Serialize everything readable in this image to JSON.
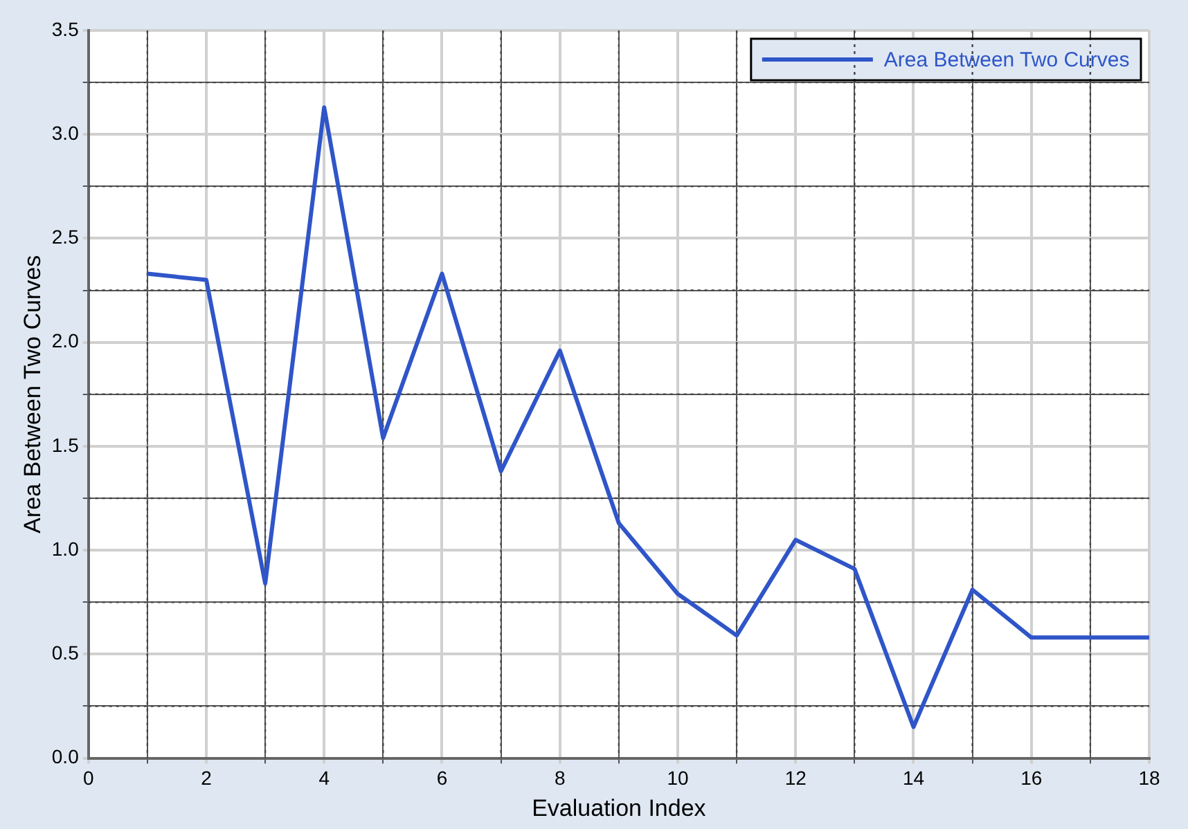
{
  "chart_data": {
    "type": "line",
    "xlabel": "Evaluation Index",
    "ylabel": "Area Between Two Curves",
    "x": [
      1,
      2,
      3,
      4,
      5,
      6,
      7,
      8,
      9,
      10,
      11,
      12,
      13,
      14,
      15,
      16,
      17,
      18
    ],
    "series": [
      {
        "name": "Area Between Two Curves",
        "color": "#2f55c8",
        "values": [
          2.33,
          2.3,
          0.84,
          3.13,
          1.54,
          2.33,
          1.38,
          1.96,
          1.13,
          0.79,
          0.59,
          1.05,
          0.91,
          0.15,
          0.81,
          0.58,
          0.58,
          0.58
        ]
      }
    ],
    "xlim": [
      0,
      18
    ],
    "xticks": [
      0,
      {
        "value": 1,
        "label": null
      },
      2,
      {
        "value": 3,
        "label": null
      },
      4,
      {
        "value": 5,
        "label": null
      },
      6,
      {
        "value": 7,
        "label": null
      },
      8,
      {
        "value": 9,
        "label": null
      },
      10,
      {
        "value": 11,
        "label": null
      },
      12,
      {
        "value": 13,
        "label": null
      },
      14,
      {
        "value": 15,
        "label": null
      },
      16,
      {
        "value": 17,
        "label": null
      },
      18
    ],
    "ylim": [
      0,
      3.5
    ],
    "yticks": [
      {
        "value": 0,
        "label": "0.0"
      },
      {
        "value": 0.25,
        "label": null
      },
      {
        "value": 0.5,
        "label": "0.5"
      },
      {
        "value": 0.75,
        "label": null
      },
      {
        "value": 1,
        "label": "1.0"
      },
      {
        "value": 1.25,
        "label": null
      },
      {
        "value": 1.5,
        "label": "1.5"
      },
      {
        "value": 1.75,
        "label": null
      },
      {
        "value": 2,
        "label": "2.0"
      },
      {
        "value": 2.25,
        "label": null
      },
      {
        "value": 2.5,
        "label": "2.5"
      },
      {
        "value": 2.75,
        "label": null
      },
      {
        "value": 3,
        "label": "3.0"
      },
      {
        "value": 3.25,
        "label": null
      },
      {
        "value": 3.5,
        "label": "3.5"
      }
    ],
    "grid": true,
    "legend": "top right",
    "marker": "none",
    "line_style": "solid"
  }
}
